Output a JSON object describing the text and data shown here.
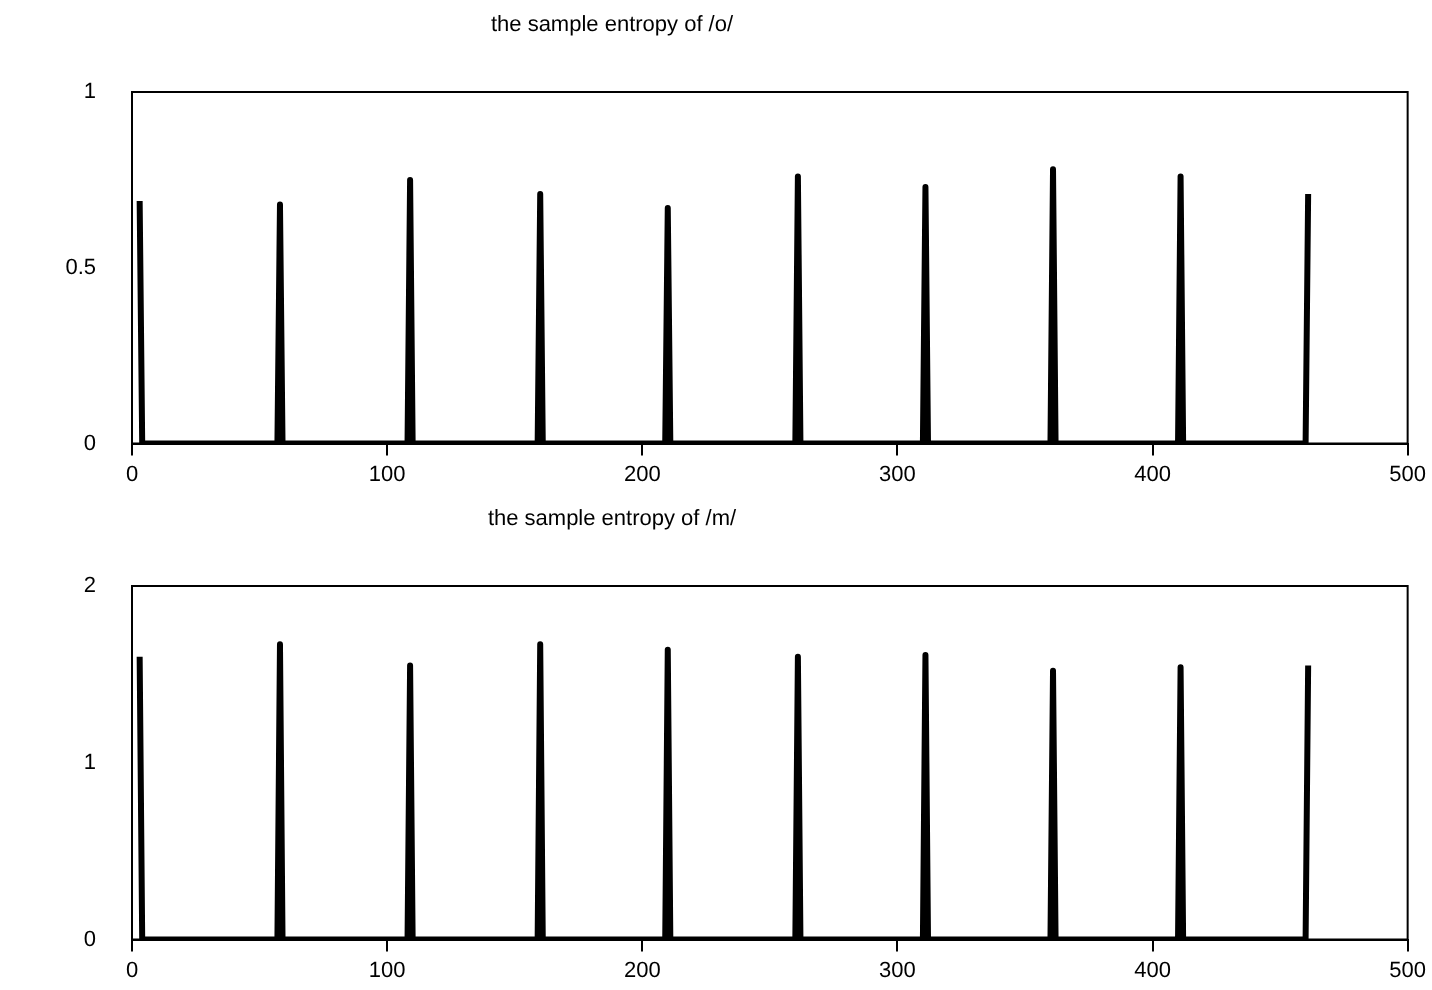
{
  "chart_data": [
    {
      "type": "line",
      "title": "the sample entropy of /o/",
      "x": [
        3,
        4,
        57,
        58,
        59,
        108,
        109,
        110,
        159,
        160,
        161,
        209,
        210,
        211,
        260,
        261,
        262,
        310,
        311,
        312,
        360,
        361,
        362,
        410,
        411,
        412,
        460,
        461
      ],
      "series": [
        {
          "color": "#000000",
          "values": [
            0.69,
            0,
            0,
            0.68,
            0,
            0,
            0.75,
            0,
            0,
            0.71,
            0,
            0,
            0.67,
            0,
            0,
            0.76,
            0,
            0,
            0.73,
            0,
            0,
            0.78,
            0,
            0,
            0.76,
            0,
            0,
            0.71
          ]
        }
      ],
      "xlim": [
        0,
        500
      ],
      "xticks": [
        0,
        100,
        200,
        300,
        400,
        500
      ],
      "ylim": [
        0,
        1
      ],
      "yticks": [
        0,
        0.5,
        1
      ],
      "grid": false,
      "legend": false,
      "marker": "none",
      "line_style": "solid"
    },
    {
      "type": "line",
      "title": "the sample entropy of /m/",
      "x": [
        3,
        4,
        57,
        58,
        59,
        108,
        109,
        110,
        159,
        160,
        161,
        209,
        210,
        211,
        260,
        261,
        262,
        310,
        311,
        312,
        360,
        361,
        362,
        410,
        411,
        412,
        460,
        461
      ],
      "series": [
        {
          "color": "#000000",
          "values": [
            1.6,
            0,
            0,
            1.67,
            0,
            0,
            1.55,
            0,
            0,
            1.67,
            0,
            0,
            1.64,
            0,
            0,
            1.6,
            0,
            0,
            1.61,
            0,
            0,
            1.52,
            0,
            0,
            1.54,
            0,
            0,
            1.55
          ]
        }
      ],
      "xlim": [
        0,
        500
      ],
      "xticks": [
        0,
        100,
        200,
        300,
        400,
        500
      ],
      "ylim": [
        0,
        2
      ],
      "yticks": [
        0,
        1,
        2
      ],
      "grid": false,
      "legend": false,
      "marker": "none",
      "line_style": "solid"
    }
  ]
}
